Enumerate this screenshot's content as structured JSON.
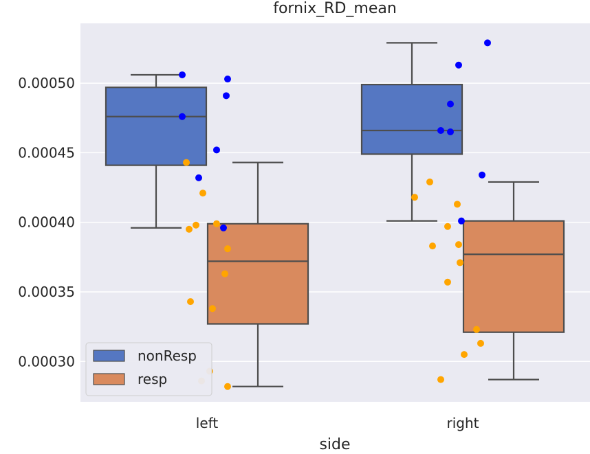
{
  "chart_data": {
    "type": "box",
    "title": "fornix_RD_mean",
    "xlabel": "side",
    "ylabel": "",
    "categories": [
      "left",
      "right"
    ],
    "ylim": [
      0.000271,
      0.000543
    ],
    "yticks": [
      0.0003,
      0.00035,
      0.0004,
      0.00045,
      0.0005
    ],
    "ytick_labels": [
      "0.00030",
      "0.00035",
      "0.00040",
      "0.00045",
      "0.00050"
    ],
    "grid": true,
    "legend": {
      "position": "lower-left"
    },
    "series": [
      {
        "name": "nonResp",
        "color": "#5577c2",
        "point_color": "#0000ff",
        "boxes": [
          {
            "category": "left",
            "whislo": 0.000396,
            "q1": 0.000441,
            "med": 0.000476,
            "q3": 0.000497,
            "whishi": 0.000506
          },
          {
            "category": "right",
            "whislo": 0.000401,
            "q1": 0.000449,
            "med": 0.000466,
            "q3": 0.000499,
            "whishi": 0.000529
          }
        ],
        "points": [
          {
            "category": "left",
            "values": [
              0.000506,
              0.000503,
              0.000491,
              0.000476,
              0.000452,
              0.000432,
              0.000396
            ]
          },
          {
            "category": "right",
            "values": [
              0.000529,
              0.000513,
              0.000485,
              0.000466,
              0.000465,
              0.000434,
              0.000401
            ]
          }
        ]
      },
      {
        "name": "resp",
        "color": "#d98a5e",
        "point_color": "#ffa500",
        "boxes": [
          {
            "category": "left",
            "whislo": 0.000282,
            "q1": 0.000327,
            "med": 0.000372,
            "q3": 0.000399,
            "whishi": 0.000443
          },
          {
            "category": "right",
            "whislo": 0.000287,
            "q1": 0.000321,
            "med": 0.000377,
            "q3": 0.000401,
            "whishi": 0.000429
          }
        ],
        "points": [
          {
            "category": "left",
            "values": [
              0.000443,
              0.000421,
              0.000399,
              0.000398,
              0.000395,
              0.000381,
              0.000363,
              0.000343,
              0.000338,
              0.000293,
              0.000286,
              0.000282
            ]
          },
          {
            "category": "right",
            "values": [
              0.000429,
              0.000418,
              0.000413,
              0.000397,
              0.000384,
              0.000383,
              0.000371,
              0.000357,
              0.000323,
              0.000313,
              0.000305,
              0.000287
            ]
          }
        ]
      }
    ]
  }
}
